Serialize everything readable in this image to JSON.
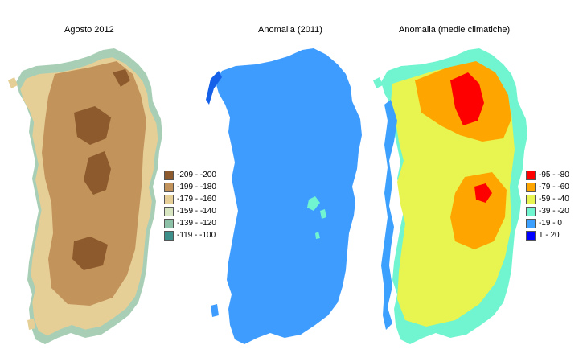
{
  "maps": [
    {
      "title": "Agosto 2012"
    },
    {
      "title": "Anomalia (2011)"
    },
    {
      "title": "Anomalia (medie climatiche)"
    }
  ],
  "legend_left": [
    {
      "label": "-209 - -200",
      "color": "#8c5a2c"
    },
    {
      "label": "-199 - -180",
      "color": "#c2935b"
    },
    {
      "label": "-179 - -160",
      "color": "#e6cf97"
    },
    {
      "label": "-159 - -140",
      "color": "#d7e6c1"
    },
    {
      "label": "-139 - -120",
      "color": "#8cc0a7"
    },
    {
      "label": "-119 - -100",
      "color": "#3c8f8a"
    }
  ],
  "legend_right": [
    {
      "label": "-95 - -80",
      "color": "#ff0000"
    },
    {
      "label": "-79 - -60",
      "color": "#ffa500"
    },
    {
      "label": "-59 - -40",
      "color": "#e8f550"
    },
    {
      "label": "-39 - -20",
      "color": "#70f5d0"
    },
    {
      "label": "-19 - 0",
      "color": "#3ca0ff"
    },
    {
      "label": "1 - 20",
      "color": "#0000ff"
    }
  ]
}
